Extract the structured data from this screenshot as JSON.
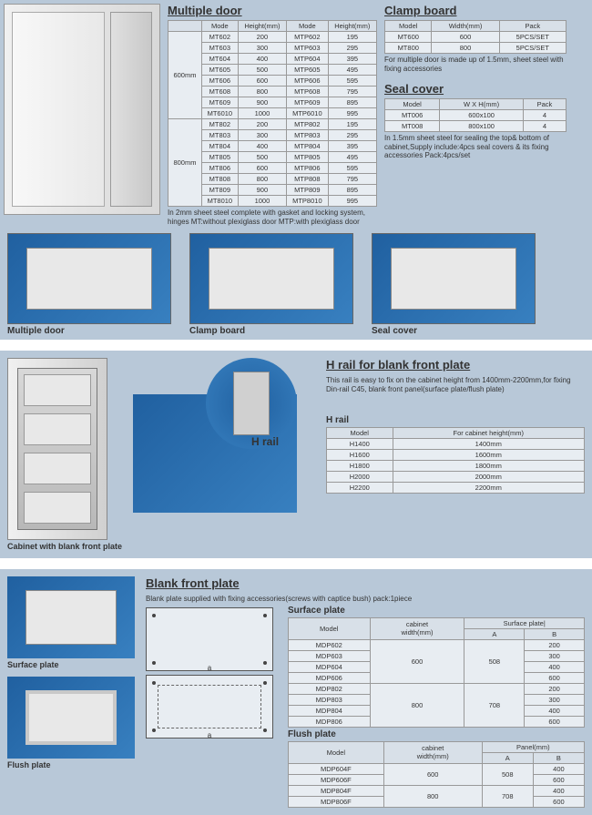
{
  "multipleDoor": {
    "title": "Multiple door",
    "headers": [
      "Mode",
      "Height(mm)",
      "Mode",
      "Height(mm)"
    ],
    "group1": {
      "label": "600mm",
      "rows": [
        [
          "MT602",
          "200",
          "MTP602",
          "195"
        ],
        [
          "MT603",
          "300",
          "MTP603",
          "295"
        ],
        [
          "MT604",
          "400",
          "MTP604",
          "395"
        ],
        [
          "MT605",
          "500",
          "MTP605",
          "495"
        ],
        [
          "MT606",
          "600",
          "MTP606",
          "595"
        ],
        [
          "MT608",
          "800",
          "MTP608",
          "795"
        ],
        [
          "MT609",
          "900",
          "MTP609",
          "895"
        ],
        [
          "MT6010",
          "1000",
          "MTP6010",
          "995"
        ]
      ]
    },
    "group2": {
      "label": "800mm",
      "rows": [
        [
          "MT802",
          "200",
          "MTP802",
          "195"
        ],
        [
          "MT803",
          "300",
          "MTP803",
          "295"
        ],
        [
          "MT804",
          "400",
          "MTP804",
          "395"
        ],
        [
          "MT805",
          "500",
          "MTP805",
          "495"
        ],
        [
          "MT806",
          "600",
          "MTP806",
          "595"
        ],
        [
          "MT808",
          "800",
          "MTP808",
          "795"
        ],
        [
          "MT809",
          "900",
          "MTP809",
          "895"
        ],
        [
          "MT8010",
          "1000",
          "MTP8010",
          "995"
        ]
      ]
    },
    "note": "In 2mm sheet steel complete with gasket and locking system, hinges  MT:without plexiglass door MTP:with plexiglass door"
  },
  "clampBoard": {
    "title": "Clamp board",
    "headers": [
      "Model",
      "Width(mm)",
      "Pack"
    ],
    "rows": [
      [
        "MT600",
        "600",
        "5PCS/SET"
      ],
      [
        "MT800",
        "800",
        "5PCS/SET"
      ]
    ],
    "note": "For multiple door is made up of 1.5mm, sheet steel with fixing accessories"
  },
  "sealCover": {
    "title": "Seal cover",
    "headers": [
      "Model",
      "W X H(mm)",
      "Pack"
    ],
    "rows": [
      [
        "MT006",
        "600x100",
        "4"
      ],
      [
        "MT008",
        "800x100",
        "4"
      ]
    ],
    "note": "In 1.5mm sheet steel for sealing the top& bottom of cabinet,Supply include:4pcs seal covers & its fixing accessories Pack:4pcs/set"
  },
  "thumbs": [
    "Multiple door",
    "Clamp board",
    "Seal cover"
  ],
  "hrail": {
    "title": "H rail for blank front plate",
    "desc": "This rail is easy to fix on the cabinet height from 1400mm-2200mm,for fixing Din-rail C45, blank front panel(surface plate/flush plate)",
    "tableTitle": "H rail",
    "headers": [
      "Model",
      "For cabinet height(mm)"
    ],
    "rows": [
      [
        "H1400",
        "1400mm"
      ],
      [
        "H1600",
        "1600mm"
      ],
      [
        "H1800",
        "1800mm"
      ],
      [
        "H2000",
        "2000mm"
      ],
      [
        "H2200",
        "2200mm"
      ]
    ],
    "caption": "Cabinet with blank front plate",
    "railLabel": "H rail"
  },
  "blankFront": {
    "title": "Blank front plate",
    "desc": "Blank plate supplied with fixing accessories(screws with captice bush)   pack:1piece",
    "surface": {
      "title": "Surface plate",
      "headers": [
        "Model",
        "cabinet width(mm)",
        "Surface plate| A",
        "Surface plate| B"
      ],
      "rows": [
        [
          "MDP602",
          "600",
          "508",
          "200"
        ],
        [
          "MDP603",
          "600",
          "508",
          "300"
        ],
        [
          "MDP604",
          "600",
          "508",
          "400"
        ],
        [
          "MDP606",
          "600",
          "508",
          "600"
        ],
        [
          "MDP802",
          "800",
          "708",
          "200"
        ],
        [
          "MDP803",
          "800",
          "708",
          "300"
        ],
        [
          "MDP804",
          "800",
          "708",
          "400"
        ],
        [
          "MDP806",
          "800",
          "708",
          "600"
        ]
      ]
    },
    "flush": {
      "title": "Flush plate",
      "headers": [
        "Model",
        "cabinet width(mm)",
        "Panel(mm) A",
        "B"
      ],
      "rows": [
        [
          "MDP604F",
          "600",
          "508",
          "400"
        ],
        [
          "MDP606F",
          "600",
          "508",
          "600"
        ],
        [
          "MDP804F",
          "800",
          "708",
          "400"
        ],
        [
          "MDP806F",
          "800",
          "708",
          "600"
        ]
      ]
    },
    "plateLabels": [
      "Surface plate",
      "Flush plate"
    ]
  }
}
